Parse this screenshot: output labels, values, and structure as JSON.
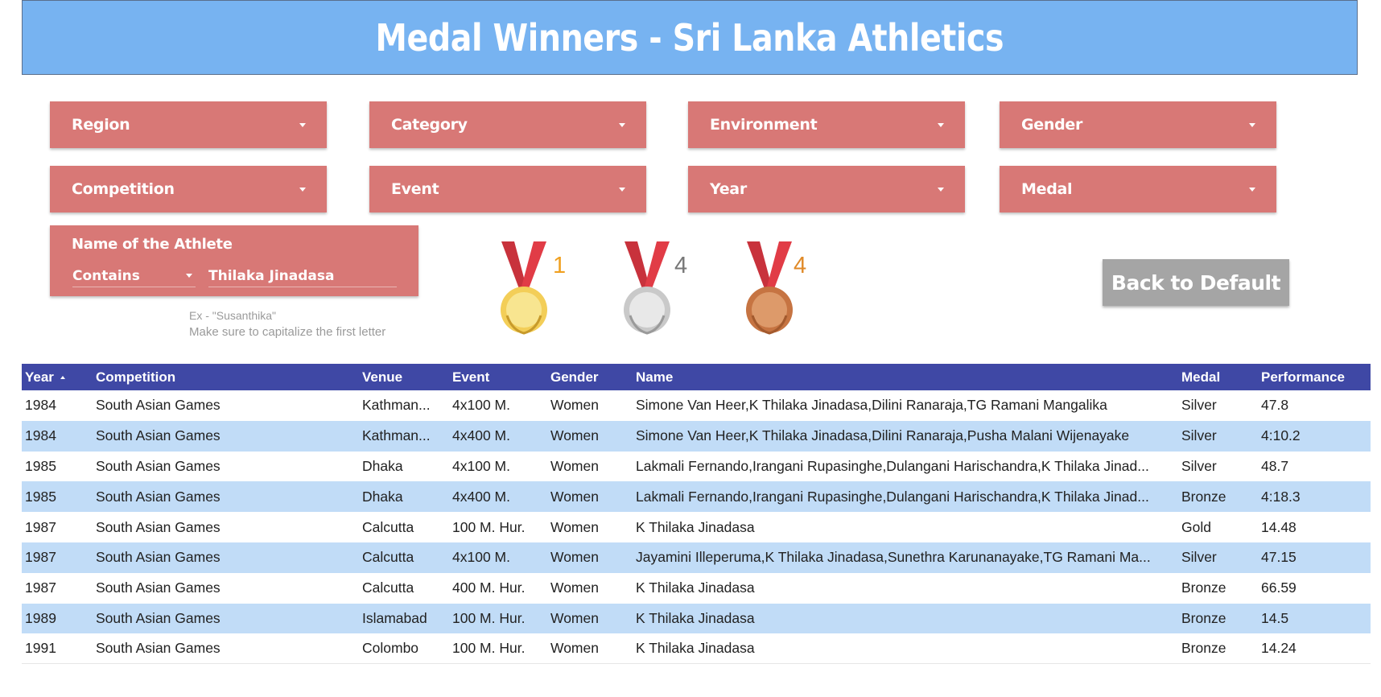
{
  "header": {
    "title": "Medal Winners - Sri Lanka Athletics"
  },
  "filters": [
    {
      "label": "Region"
    },
    {
      "label": "Category"
    },
    {
      "label": "Environment"
    },
    {
      "label": "Gender"
    },
    {
      "label": "Competition"
    },
    {
      "label": "Event"
    },
    {
      "label": "Year"
    },
    {
      "label": "Medal"
    }
  ],
  "athlete_filter": {
    "title": "Name of the Athlete",
    "mode": "Contains",
    "value": "Thilaka Jinadasa",
    "hint_example": "Ex - \"Susanthika\"",
    "hint_rule": "Make sure to capitalize the first letter"
  },
  "medal_counts": {
    "gold": {
      "count": "1",
      "color": "#f0a020"
    },
    "silver": {
      "count": "4",
      "color": "#777777"
    },
    "bronze": {
      "count": "4",
      "color": "#e08a28"
    }
  },
  "reset_button": {
    "label": "Back to Default"
  },
  "table": {
    "columns": [
      "Year",
      "Competition",
      "Venue",
      "Event",
      "Gender",
      "Name",
      "Medal",
      "Performance"
    ],
    "rows": [
      [
        "1984",
        "South Asian Games",
        "Kathman...",
        "4x100 M.",
        "Women",
        "Simone Van Heer,K Thilaka Jinadasa,Dilini Ranaraja,TG Ramani Mangalika",
        "Silver",
        "47.8"
      ],
      [
        "1984",
        "South Asian Games",
        "Kathman...",
        "4x400 M.",
        "Women",
        "Simone Van Heer,K Thilaka Jinadasa,Dilini Ranaraja,Pusha Malani Wijenayake",
        "Silver",
        "4:10.2"
      ],
      [
        "1985",
        "South Asian Games",
        "Dhaka",
        "4x100 M.",
        "Women",
        "Lakmali Fernando,Irangani Rupasinghe,Dulangani Harischandra,K Thilaka Jinad...",
        "Silver",
        "48.7"
      ],
      [
        "1985",
        "South Asian Games",
        "Dhaka",
        "4x400 M.",
        "Women",
        "Lakmali Fernando,Irangani Rupasinghe,Dulangani Harischandra,K Thilaka Jinad...",
        "Bronze",
        "4:18.3"
      ],
      [
        "1987",
        "South Asian Games",
        "Calcutta",
        "100 M. Hur.",
        "Women",
        "K Thilaka Jinadasa",
        "Gold",
        "14.48"
      ],
      [
        "1987",
        "South Asian Games",
        "Calcutta",
        "4x100 M.",
        "Women",
        "Jayamini Illeperuma,K Thilaka Jinadasa,Sunethra Karunanayake,TG Ramani Ma...",
        "Silver",
        "47.15"
      ],
      [
        "1987",
        "South Asian Games",
        "Calcutta",
        "400 M. Hur.",
        "Women",
        "K Thilaka Jinadasa",
        "Bronze",
        "66.59"
      ],
      [
        "1989",
        "South Asian Games",
        "Islamabad",
        "100 M. Hur.",
        "Women",
        "K Thilaka Jinadasa",
        "Bronze",
        "14.5"
      ],
      [
        "1991",
        "South Asian Games",
        "Colombo",
        "100 M. Hur.",
        "Women",
        "K Thilaka Jinadasa",
        "Bronze",
        "14.24"
      ]
    ]
  }
}
